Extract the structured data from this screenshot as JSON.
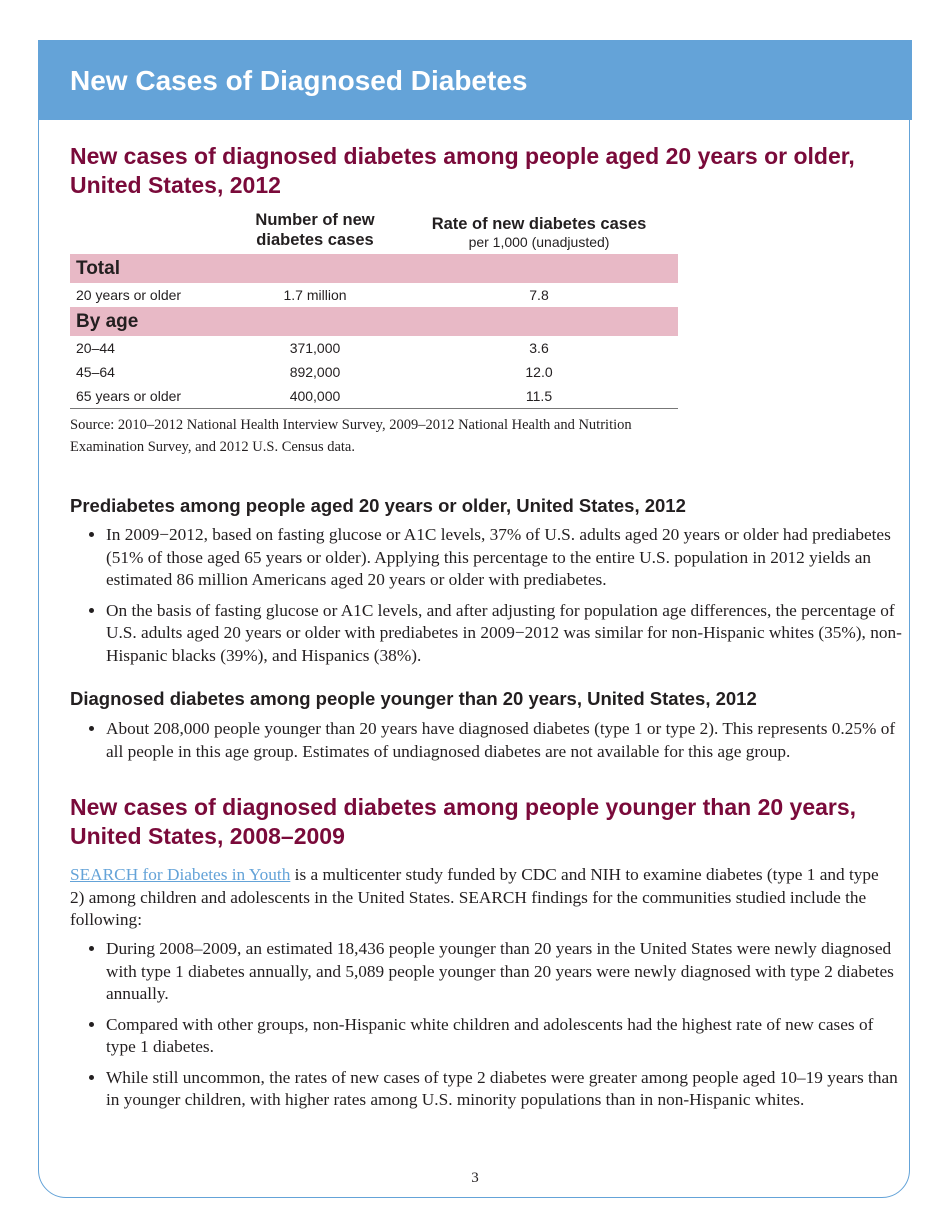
{
  "header": {
    "title": "New Cases of Diagnosed Diabetes"
  },
  "section1": {
    "heading": [
      "New cases of diagnosed diabetes among people aged 20 years or older,",
      "United States, 2012"
    ],
    "table": {
      "columns": [
        "Number of new diabetes cases",
        "Rate of new diabetes cases",
        "per 1,000 (unadjusted)"
      ],
      "sections": [
        {
          "title": "Total",
          "rows": [
            [
              "20 years or older",
              "1.7 million",
              "7.8"
            ]
          ]
        },
        {
          "title": "By age",
          "rows": [
            [
              "20–44",
              "371,000",
              "3.6"
            ],
            [
              "45–64",
              "892,000",
              "12.0"
            ],
            [
              "65 years or older",
              "400,000",
              "11.5"
            ]
          ]
        }
      ]
    },
    "source": "Source: 2010–2012 National Health Interview Survey, 2009–2012 National Health and Nutrition Examination Survey, and 2012 U.S. Census data."
  },
  "prediabetes": {
    "heading": "Prediabetes among people aged 20 years or older, United States, 2012",
    "bullets": [
      "In 2009−2012, based on fasting glucose or A1C levels, 37% of U.S. adults aged 20 years or older had prediabetes (51% of those aged 65 years or older). Applying this percentage to the entire U.S. population in 2012 yields an estimated 86 million Americans aged 20 years or older with prediabetes.",
      "On the basis of fasting glucose or A1C levels, and after adjusting for population age differences, the percentage of U.S. adults aged 20 years or older with prediabetes in 2009−2012 was similar for non-Hispanic whites (35%), non-Hispanic blacks (39%), and Hispanics (38%)."
    ]
  },
  "young": {
    "heading": "Diagnosed diabetes among people younger than 20 years, United States, 2012",
    "bullets": [
      "About 208,000 people younger than 20 years have diagnosed diabetes (type 1 or type 2). This represents 0.25% of all people in this age group. Estimates of undiagnosed diabetes are not available for this age group."
    ]
  },
  "section2": {
    "heading": [
      "New cases of diagnosed diabetes among people younger than 20 years,",
      "United States, 2008–2009"
    ],
    "link_text": "SEARCH for Diabetes in Youth",
    "intro": " is a multicenter study funded by CDC and NIH to examine diabetes (type 1 and type 2) among children and adolescents in the United States. SEARCH findings for the communities studied include the following:",
    "bullets": [
      "During 2008–2009, an estimated 18,436 people younger than 20 years in the United States were newly diagnosed with type 1 diabetes annually, and 5,089 people younger than 20 years were newly diagnosed with type 2 diabetes annually.",
      "Compared with other groups, non-Hispanic white children and adolescents had the highest rate of new cases of type 1 diabetes.",
      "While still uncommon, the rates of new cases of type 2 diabetes were greater among people aged 10–19 years than in younger children, with higher rates among U.S. minority populations than in non-Hispanic whites."
    ]
  },
  "page_number": "3"
}
